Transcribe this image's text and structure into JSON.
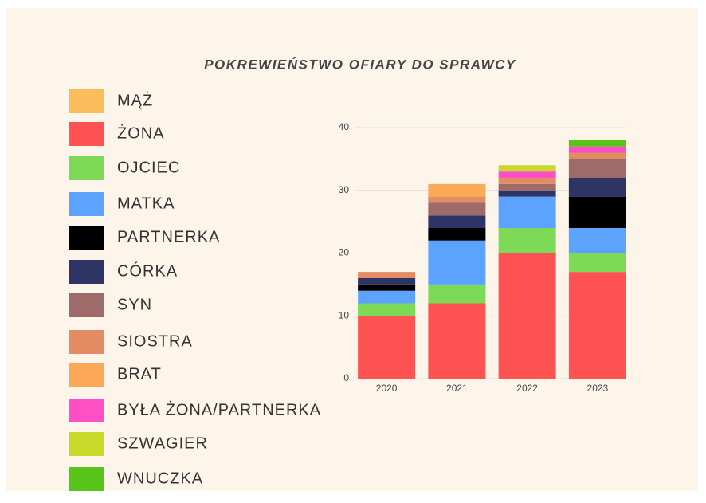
{
  "chart_data": {
    "type": "stacked_bar",
    "title": "POKREWIEŃSTWO OFIARY DO SPRAWCY",
    "categories": [
      "2020",
      "2021",
      "2022",
      "2023"
    ],
    "series": [
      {
        "name": "MĄŻ",
        "color": "#fbbd5c",
        "values": [
          0,
          0,
          0,
          0
        ]
      },
      {
        "name": "ŻONA",
        "color": "#ff5252",
        "values": [
          10,
          12,
          20,
          17
        ]
      },
      {
        "name": "OJCIEC",
        "color": "#7ed957",
        "values": [
          2,
          3,
          4,
          3
        ]
      },
      {
        "name": "MATKA",
        "color": "#5ca3ff",
        "values": [
          2,
          7,
          5,
          4
        ]
      },
      {
        "name": "PARTNERKA",
        "color": "#000000",
        "values": [
          1,
          2,
          0,
          5
        ]
      },
      {
        "name": "CÓRKA",
        "color": "#2e3466",
        "values": [
          1,
          2,
          1,
          3
        ]
      },
      {
        "name": "SYN",
        "color": "#9e6b68",
        "values": [
          0,
          2,
          1,
          3
        ]
      },
      {
        "name": "SIOSTRA",
        "color": "#e38b63",
        "values": [
          1,
          1,
          1,
          1
        ]
      },
      {
        "name": "BRAT",
        "color": "#fba957",
        "values": [
          0,
          2,
          0,
          0
        ]
      },
      {
        "name": "BYŁA ŻONA/PARTNERKA",
        "color": "#ff4fc4",
        "values": [
          0,
          0,
          1,
          1
        ]
      },
      {
        "name": "SZWAGIER",
        "color": "#c9d92a",
        "values": [
          0,
          0,
          1,
          0
        ]
      },
      {
        "name": "WNUCZKA",
        "color": "#57c41a",
        "values": [
          0,
          0,
          0,
          1
        ]
      }
    ],
    "ylim": [
      0,
      40
    ],
    "yticks": [
      0,
      10,
      20,
      30,
      40
    ],
    "grid": true,
    "legend": "left"
  }
}
